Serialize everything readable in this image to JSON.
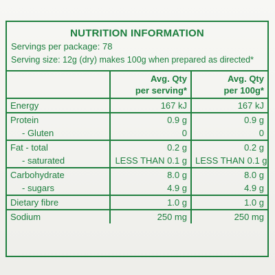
{
  "title": "NUTRITION INFORMATION",
  "servings_per_package": "Servings per package: 78",
  "serving_size": "Serving size: 12g (dry) makes 100g when prepared as directed*",
  "headers": {
    "per_serving_line1": "Avg. Qty",
    "per_serving_line2": "per serving*",
    "per_100g_line1": "Avg. Qty",
    "per_100g_line2": "per 100g*"
  },
  "rows": [
    {
      "label": "Energy",
      "per_serving": "167 kJ",
      "per_100g": "167 kJ"
    },
    {
      "label": "Protein",
      "per_serving": "0.9 g",
      "per_100g": "0.9 g"
    },
    {
      "label": "- Gluten",
      "per_serving": "0",
      "per_100g": "0"
    },
    {
      "label": "Fat - total",
      "per_serving": "0.2 g",
      "per_100g": "0.2 g"
    },
    {
      "label": "- saturated",
      "per_serving": "LESS THAN 0.1 g",
      "per_100g": "LESS THAN 0.1 g"
    },
    {
      "label": "Carbohydrate",
      "per_serving": "8.0 g",
      "per_100g": "8.0 g"
    },
    {
      "label": "- sugars",
      "per_serving": "4.9 g",
      "per_100g": "4.9 g"
    },
    {
      "label": "Dietary fibre",
      "per_serving": "1.0 g",
      "per_100g": "1.0 g"
    },
    {
      "label": "Sodium",
      "per_serving": "250 mg",
      "per_100g": "250 mg"
    }
  ],
  "colors": {
    "text": "#1c7e3d",
    "border": "#1f7f3e",
    "background": "#f4f4f1"
  }
}
